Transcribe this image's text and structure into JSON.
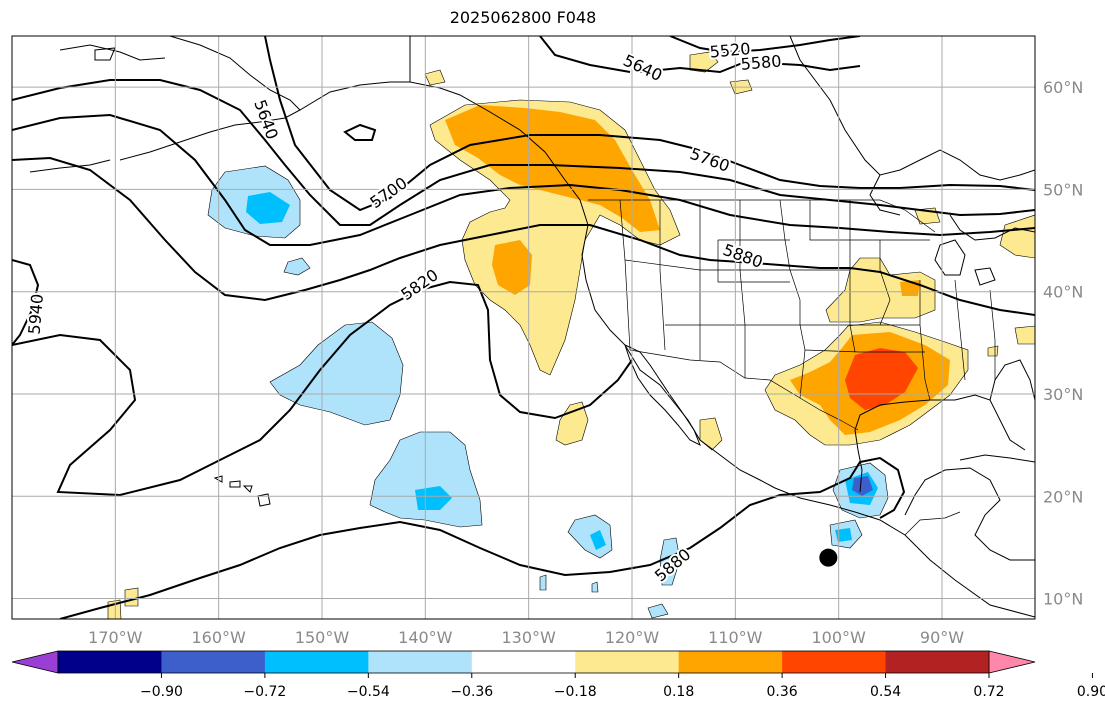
{
  "title": "2025062800 F048",
  "map": {
    "projection": "plate-carree",
    "lon_range": [
      -180,
      -81
    ],
    "lat_range": [
      8,
      65
    ],
    "gridlines": true,
    "lon_ticks": [
      {
        "value": -170,
        "label": "170°W"
      },
      {
        "value": -160,
        "label": "160°W"
      },
      {
        "value": -150,
        "label": "150°W"
      },
      {
        "value": -140,
        "label": "140°W"
      },
      {
        "value": -130,
        "label": "130°W"
      },
      {
        "value": -120,
        "label": "120°W"
      },
      {
        "value": -110,
        "label": "110°W"
      },
      {
        "value": -100,
        "label": "100°W"
      },
      {
        "value": -90,
        "label": "90°W"
      }
    ],
    "lat_ticks": [
      {
        "value": 60,
        "label": "60°N"
      },
      {
        "value": 50,
        "label": "50°N"
      },
      {
        "value": 40,
        "label": "40°N"
      },
      {
        "value": 30,
        "label": "30°N"
      },
      {
        "value": 20,
        "label": "20°N"
      },
      {
        "value": 10,
        "label": "10°N"
      }
    ],
    "marker": {
      "lon": -101,
      "lat": 14,
      "color": "#000000"
    }
  },
  "contour_labels": [
    {
      "text": "5520",
      "lon": -110.5,
      "lat": 63.5,
      "angle": -5
    },
    {
      "text": "5580",
      "lon": -107.5,
      "lat": 62.3,
      "angle": -5
    },
    {
      "text": "5640",
      "lon": -119,
      "lat": 61.8,
      "angle": 25
    },
    {
      "text": "5640",
      "lon": -155.5,
      "lat": 56.8,
      "angle": 70
    },
    {
      "text": "5700",
      "lon": -143.5,
      "lat": 49.6,
      "angle": -35
    },
    {
      "text": "5760",
      "lon": -112.5,
      "lat": 52.8,
      "angle": 20
    },
    {
      "text": "5820",
      "lon": -140.5,
      "lat": 40.6,
      "angle": -35
    },
    {
      "text": "5880",
      "lon": -109.3,
      "lat": 43.4,
      "angle": 20
    },
    {
      "text": "5880",
      "lon": -116,
      "lat": 13.2,
      "angle": -40
    },
    {
      "text": "5940",
      "lon": -177.6,
      "lat": 37.8,
      "angle": -85
    }
  ],
  "colorbar": {
    "colors": [
      "#9a3fd4",
      "#00008b",
      "#3d5fcc",
      "#00bfff",
      "#aee3fb",
      "#ffffff",
      "#fde98f",
      "#ffa500",
      "#ff4500",
      "#b22222",
      "#ff88aa"
    ],
    "tick_labels": [
      "−0.90",
      "−0.72",
      "−0.54",
      "−0.36",
      "−0.18",
      "0.18",
      "0.36",
      "0.54",
      "0.72",
      "0.90"
    ],
    "extend": "both"
  }
}
